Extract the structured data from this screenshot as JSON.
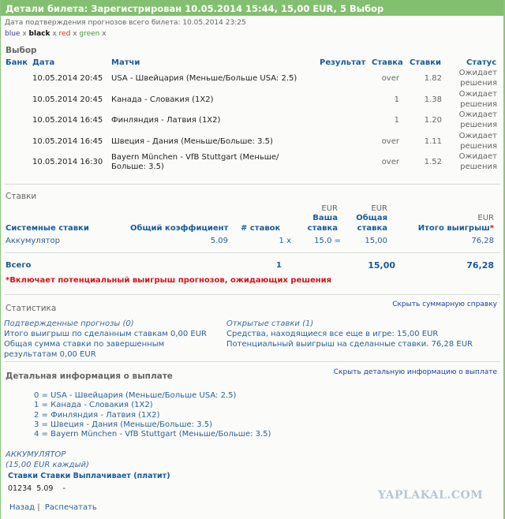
{
  "header": {
    "title": "Детали билета: Зарегистрирован 10.05.2014 15:44, 15,00 EUR, 5 Выбор"
  },
  "confirm_date": "Дата подтверждения прогнозов всего билета: 10.05.2014 23:25",
  "legend": [
    {
      "label": "blue",
      "color": "#3b3ba8"
    },
    {
      "label": "black",
      "color": "#111111"
    },
    {
      "label": "red",
      "color": "#c83030"
    },
    {
      "label": "green",
      "color": "#3a9a3a"
    }
  ],
  "legend_sep": "x",
  "selection": {
    "title": "Выбор",
    "columns": {
      "bank": "Банк",
      "date": "Дата",
      "matches": "Матчи",
      "result": "Результат",
      "bet": "Ставка",
      "odds": "Ставки",
      "status": "Статус"
    },
    "rows": [
      {
        "date": "10.05.2014 20:45",
        "match": "USA - Швейцария (Меньше/Больше USA: 2.5)",
        "match2": "",
        "bet": "over",
        "odds": "1.82",
        "status1": "Ожидает",
        "status2": "решения"
      },
      {
        "date": "10.05.2014 20:45",
        "match": "Канада - Словакия (1X2)",
        "match2": "",
        "bet": "1",
        "odds": "1.38",
        "status1": "Ожидает",
        "status2": "решения"
      },
      {
        "date": "10.05.2014 16:45",
        "match": "Финляндия - Латвия (1X2)",
        "match2": "",
        "bet": "1",
        "odds": "1.20",
        "status1": "Ожидает",
        "status2": "решения"
      },
      {
        "date": "10.05.2014 16:45",
        "match": "Швеция - Дания (Меньше/Больше: 3.5)",
        "match2": "",
        "bet": "over",
        "odds": "1.11",
        "status1": "Ожидает",
        "status2": "решения"
      },
      {
        "date": "10.05.2014 16:30",
        "match": "Bayern München - VfB Stuttgart (Меньше/",
        "match2": "Больше: 3.5)",
        "bet": "over",
        "odds": "1.52",
        "status1": "Ожидает",
        "status2": "решения"
      }
    ]
  },
  "stakes": {
    "title": "Ставки",
    "columns": {
      "system": "Системные ставки",
      "total_odds": "Общий коэффициент",
      "count": "# ставок",
      "cur": "EUR",
      "your1": "Ваша",
      "your2": "ставка",
      "total1": "Общая",
      "total2": "ставка",
      "win": "Итого выигрыш",
      "asterisk": "*"
    },
    "row": {
      "name": "Аккумулятор",
      "odds": "5.09",
      "count": "1 x",
      "stake": "15.0 =",
      "total": "15,00",
      "win": "76,28"
    },
    "sum": {
      "label": "Всего",
      "count": "1",
      "total": "15,00",
      "win": "76,28"
    },
    "note": "*Включает потенциальный выигрыш прогнозов, ожидающих решения"
  },
  "stats": {
    "title": "Статистика",
    "hide_link": "Скрыть суммарную справку",
    "confirmed": "Подтвержденные прогнозы (0)",
    "total_win": "Итого выигрыш по сделанным ставкам 0,00 EUR",
    "total_stake1": "Общая сумма ставки по завершенным",
    "total_stake2": "результатам 0,00 EUR",
    "open": "Открытые ставки (1)",
    "in_play": "Средства, находящиеся все еще в игре: 15,00 EUR",
    "potential": "Потенциальный выигрыш на сделанные ставки. 76,28 EUR"
  },
  "payout": {
    "title": "Детальная информация о выплате",
    "hide_link": "Скрыть детальную информацию о выплате",
    "items": [
      "0 = USA - Швейцария (Меньше/Больше USA: 2.5)",
      "1 = Канада - Словакия (1X2)",
      "2 = Финляндия - Латвия (1X2)",
      "3 = Швеция - Дания (Меньше/Больше: 3.5)",
      "4 = Bayern München - VfB Stuttgart (Меньше/Больше: 3.5)"
    ],
    "type": "АККУМУЛЯТОР",
    "each": "(15,00 EUR каждый)",
    "columns": "Ставки Ставки Выплачивает (платит)",
    "row": {
      "combo": "01234",
      "odds": "5.09",
      "pays": "-"
    }
  },
  "footer": {
    "back": "Назад",
    "sep": "|",
    "print": "Распечатать"
  },
  "watermark": "YAPLAKAL.COM",
  "colors": {
    "header": "#82c06f",
    "link": "#1a5a9a",
    "note": "#d4141a"
  }
}
